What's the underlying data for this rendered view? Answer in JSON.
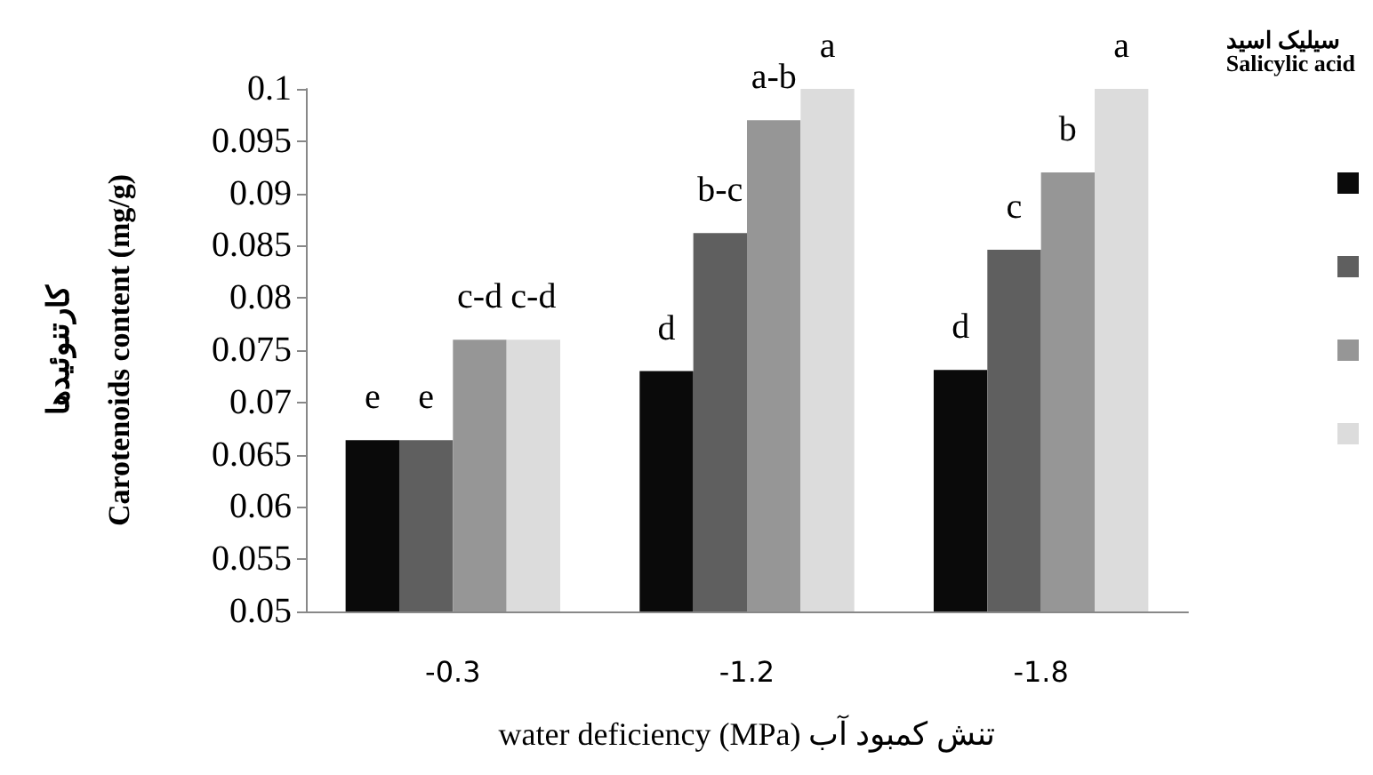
{
  "chart_data": {
    "type": "bar",
    "xlabel": "water deficiency (MPa) تنش کمبود آب",
    "ylabel": "کارتنوئیدها\nCarotenoids content (mg/g)",
    "legend_title": "سیلیک اسید\nSalicylic acid",
    "categories": [
      "-0.3",
      "-1.2",
      "-1.8"
    ],
    "series": [
      {
        "color": "#0a0a0a",
        "values": [
          0.0664,
          0.073,
          0.0731
        ],
        "value_labels": [
          "e",
          "d",
          "d"
        ]
      },
      {
        "color": "#5f5f5f",
        "values": [
          0.0664,
          0.0862,
          0.0846
        ],
        "value_labels": [
          "e",
          "b-c",
          "c"
        ]
      },
      {
        "color": "#969696",
        "values": [
          0.076,
          0.097,
          0.092
        ],
        "value_labels": [
          "c-d",
          "a-b",
          "b"
        ]
      },
      {
        "color": "#dcdcdc",
        "values": [
          0.076,
          0.1,
          0.1
        ],
        "value_labels": [
          "c-d",
          "a",
          "a"
        ]
      }
    ],
    "ylim": [
      0.05,
      0.1
    ],
    "yticks": [
      0.05,
      0.055,
      0.06,
      0.065,
      0.07,
      0.075,
      0.08,
      0.085,
      0.09,
      0.095,
      0.1
    ],
    "grid": false
  }
}
